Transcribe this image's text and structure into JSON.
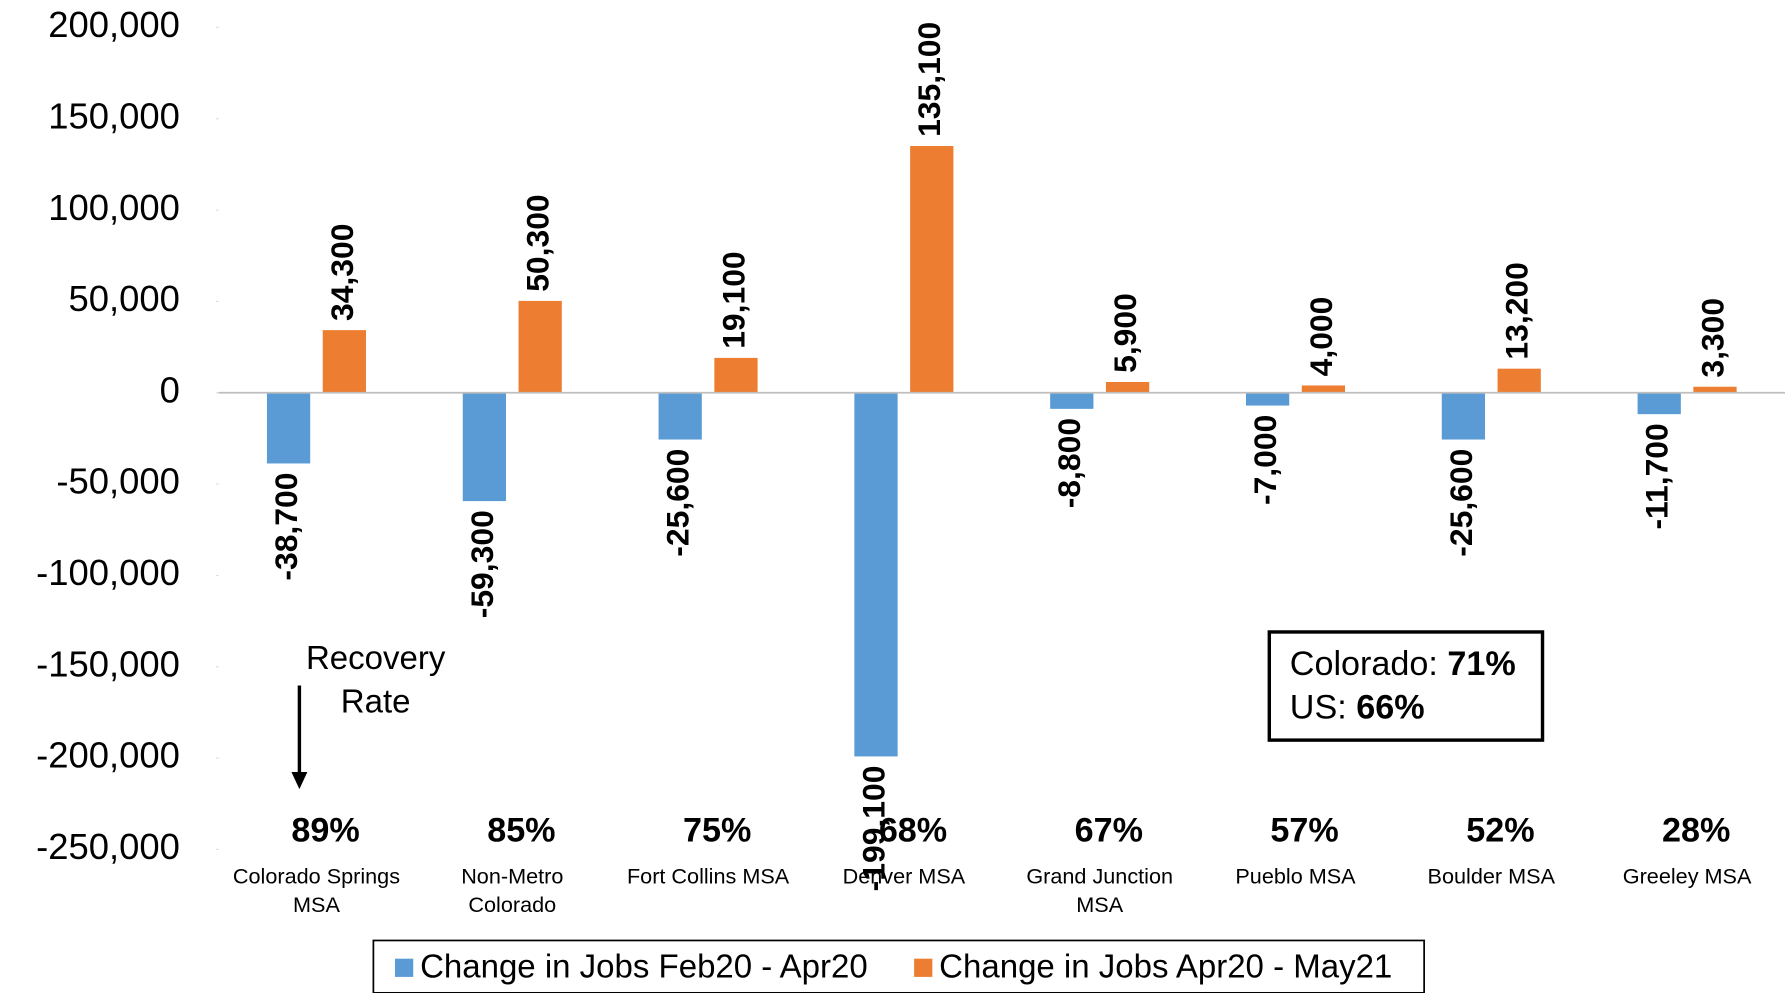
{
  "chart_data": {
    "type": "bar",
    "categories": [
      "Colorado Springs\nMSA",
      "Non-Metro\nColorado",
      "Fort Collins MSA",
      "Denver MSA",
      "Grand Junction\nMSA",
      "Pueblo MSA",
      "Boulder MSA",
      "Greeley MSA"
    ],
    "series": [
      {
        "name": "Change in Jobs Feb20 - Apr20",
        "color": "#5b9bd5",
        "values": [
          -38700,
          -59300,
          -25600,
          -199100,
          -8800,
          -7000,
          -25600,
          -11700
        ],
        "value_labels": [
          "-38,700",
          "-59,300",
          "-25,600",
          "-199,100",
          "-8,800",
          "-7,000",
          "-25,600",
          "-11,700"
        ]
      },
      {
        "name": "Change in Jobs Apr20 - May21",
        "color": "#ed7d31",
        "values": [
          34300,
          50300,
          19100,
          135100,
          5900,
          4000,
          13200,
          3300
        ],
        "value_labels": [
          "34,300",
          "50,300",
          "19,100",
          "135,100",
          "5,900",
          "4,000",
          "13,200",
          "3,300"
        ]
      }
    ],
    "ylim": [
      -250000,
      200000
    ],
    "yticks": [
      {
        "value": -250000,
        "label": "-250,000"
      },
      {
        "value": -200000,
        "label": "-200,000"
      },
      {
        "value": -150000,
        "label": "-150,000"
      },
      {
        "value": -100000,
        "label": "-100,000"
      },
      {
        "value": -50000,
        "label": "-50,000"
      },
      0,
      {
        "value": 50000,
        "label": "50,000"
      },
      {
        "value": 100000,
        "label": "100,000"
      },
      {
        "value": 150000,
        "label": "150,000"
      },
      {
        "value": 200000,
        "label": "200,000"
      }
    ],
    "grid": false,
    "recovery_rate": {
      "label_lines": [
        "Recovery",
        "Rate"
      ],
      "values": [
        89,
        85,
        75,
        68,
        67,
        57,
        52,
        28
      ],
      "value_labels": [
        "89%",
        "85%",
        "75%",
        "68%",
        "67%",
        "57%",
        "52%",
        "28%"
      ]
    },
    "summary_box": [
      {
        "label": "Colorado:",
        "value": 71,
        "value_label": "71%"
      },
      {
        "label": "US:",
        "value": 66,
        "value_label": "66%"
      }
    ],
    "legend": "bottom"
  }
}
